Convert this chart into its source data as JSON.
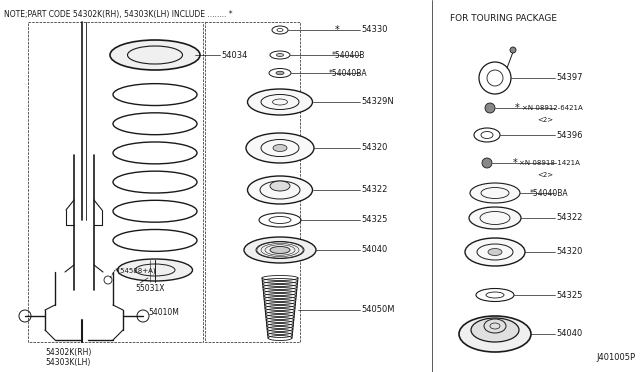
{
  "bg_color": "#ffffff",
  "line_color": "#1a1a1a",
  "text_color": "#1a1a1a",
  "diagram_id": "J401005P",
  "title": "NOTE;PART CODE 54302K(RH), 54303K(LH) INCLUDE ........ *",
  "touring_header": "FOR TOURING PACKAGE"
}
